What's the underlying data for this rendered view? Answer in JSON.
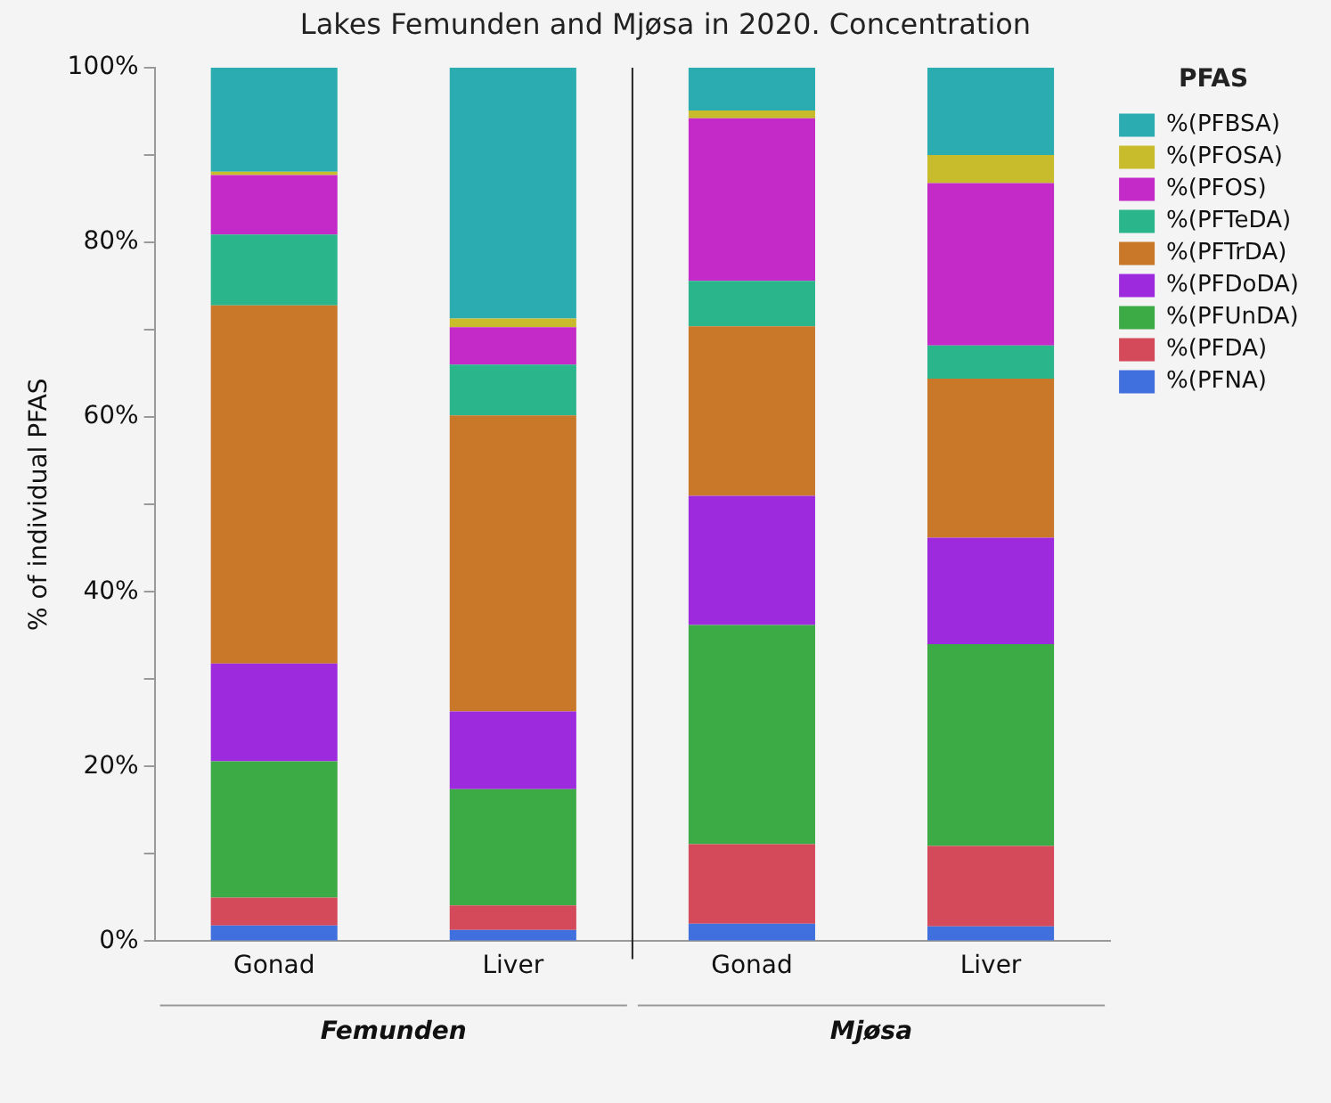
{
  "chart_data": {
    "type": "bar",
    "title": "Lakes Femunden and Mjøsa in 2020. Concentration",
    "ylabel": "% of individual PFAS",
    "legend_title": "PFAS",
    "legend": "right",
    "stacked": true,
    "grid": false,
    "categories": [
      "Gonad",
      "Liver",
      "Gonad",
      "Liver"
    ],
    "annotations": [
      "Femunden",
      "Mjøsa"
    ],
    "ylim": [
      0,
      100
    ],
    "yticks": [
      {
        "value": 0,
        "label": "0%"
      },
      {
        "value": 10,
        "label": null
      },
      {
        "value": 20,
        "label": "20%"
      },
      {
        "value": 30,
        "label": null
      },
      {
        "value": 40,
        "label": "40%"
      },
      {
        "value": 50,
        "label": null
      },
      {
        "value": 60,
        "label": "60%"
      },
      {
        "value": 70,
        "label": null
      },
      {
        "value": 80,
        "label": "80%"
      },
      {
        "value": 90,
        "label": null
      },
      {
        "value": 100,
        "label": "100%"
      }
    ],
    "series": [
      {
        "name": "%(PFNA)",
        "color": "#4070dd",
        "values": [
          1.8,
          1.3,
          2.0,
          1.7
        ]
      },
      {
        "name": "%(PFDA)",
        "color": "#d44a5a",
        "values": [
          3.2,
          2.8,
          9.1,
          9.2
        ]
      },
      {
        "name": "%(PFUnDA)",
        "color": "#3dab45",
        "values": [
          15.6,
          13.3,
          25.1,
          23.1
        ]
      },
      {
        "name": "%(PFDoDA)",
        "color": "#9e2ade",
        "values": [
          11.2,
          8.9,
          14.8,
          12.2
        ]
      },
      {
        "name": "%(PFTrDA)",
        "color": "#c97729",
        "values": [
          41.0,
          33.9,
          19.4,
          18.2
        ]
      },
      {
        "name": "%(PFTeDA)",
        "color": "#2ab58a",
        "values": [
          8.1,
          5.8,
          5.2,
          3.8
        ]
      },
      {
        "name": "%(PFOS)",
        "color": "#c42ac8",
        "values": [
          6.8,
          4.3,
          18.6,
          18.6
        ]
      },
      {
        "name": "%(PFOSA)",
        "color": "#c8bc2c",
        "values": [
          0.4,
          1.0,
          0.9,
          3.2
        ]
      },
      {
        "name": "%(PFBSA)",
        "color": "#2aacb0",
        "values": [
          11.9,
          28.7,
          4.9,
          10.0
        ]
      }
    ]
  }
}
